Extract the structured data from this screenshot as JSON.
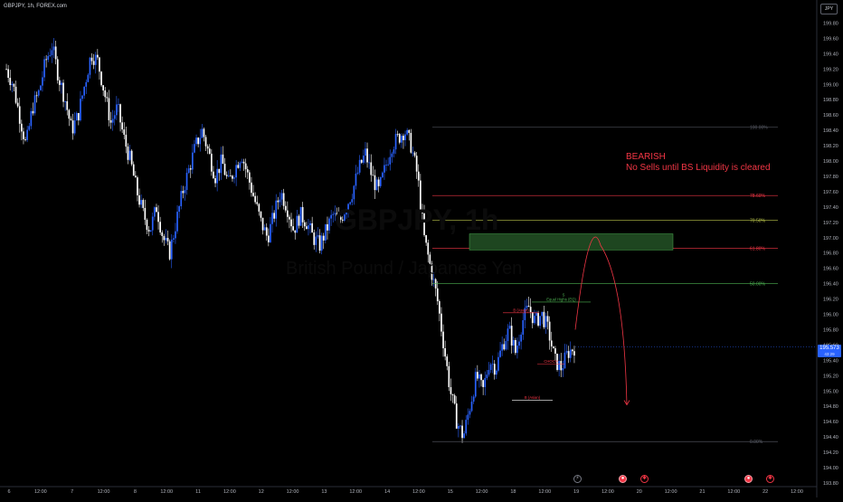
{
  "header": {
    "symbol": "GBPJPY, 1h, FOREX.com"
  },
  "currency": "JPY",
  "watermark": {
    "ticker": "GBPJPY, 1h",
    "name": "British Pound / Japanese Yen"
  },
  "annotation": {
    "line1": "BEARISH",
    "line2": "No Sells until BS Liquidity is cleared"
  },
  "price_tag": {
    "value": "195.573",
    "countdown": "43:29"
  },
  "colors": {
    "bull": "#2962ff",
    "bear": "#ffffff",
    "annotation": "#f23645",
    "zone": "#1e4620",
    "fib_100": "#5d606b",
    "fib_786": "#f23645",
    "fib_705": "#b8c34a",
    "fib_618": "#f23645",
    "fib_50": "#4caf50",
    "fib_0": "#5d606b"
  },
  "events": [
    {
      "name": "lightning",
      "glyph": "⚡"
    },
    {
      "name": "flag-1",
      "glyph": "●"
    },
    {
      "name": "flag-2",
      "glyph": "✱"
    },
    {
      "name": "flag-3",
      "glyph": "●"
    },
    {
      "name": "flag-4",
      "glyph": "✱"
    }
  ],
  "chart_data": {
    "type": "candlestick",
    "title": "GBPJPY, 1h, FOREX.com",
    "ylim": [
      193.95,
      200.0
    ],
    "y_ticks": [
      "199.80",
      "199.60",
      "199.40",
      "199.20",
      "199.00",
      "198.80",
      "198.60",
      "198.40",
      "198.20",
      "198.00",
      "197.80",
      "197.60",
      "197.40",
      "197.20",
      "197.00",
      "196.80",
      "196.60",
      "196.40",
      "196.20",
      "196.00",
      "195.80",
      "195.60",
      "195.40",
      "195.20",
      "195.00",
      "194.80",
      "194.60",
      "194.40",
      "194.20",
      "194.00",
      "193.80"
    ],
    "x_ticks": [
      "6",
      "12:00",
      "7",
      "12:00",
      "8",
      "12:00",
      "11",
      "12:00",
      "12",
      "12:00",
      "13",
      "12:00",
      "14",
      "12:00",
      "15",
      "12:00",
      "18",
      "12:00",
      "19",
      "12:00",
      "20",
      "12:00",
      "21",
      "12:00",
      "22",
      "12:00"
    ],
    "fib_levels": [
      {
        "label": "100.00%",
        "price": 198.44
      },
      {
        "label": "78.60%",
        "price": 197.55
      },
      {
        "label": "70.50%",
        "price": 197.23
      },
      {
        "label": "61.80%",
        "price": 196.86
      },
      {
        "label": "50.00%",
        "price": 196.4
      },
      {
        "label": "0.00%",
        "price": 194.34
      }
    ],
    "supply_zone": {
      "from": 196.84,
      "to": 197.05
    },
    "markers": [
      {
        "text": "B (Asian)",
        "price": 196.02
      },
      {
        "text": "Equal Highs (EQ)",
        "price": 196.16
      },
      {
        "text": "S",
        "price": 196.22
      },
      {
        "text": "CHOCH",
        "price": 195.35
      },
      {
        "text": "B (Asian)",
        "price": 194.88
      }
    ],
    "projection": {
      "from_price": 195.8,
      "peak_price": 196.9,
      "to_price": 194.82
    },
    "last_price": 195.573,
    "ohlc_path": [
      199.2,
      199.0,
      198.6,
      198.2,
      198.7,
      198.9,
      199.3,
      199.5,
      199.1,
      198.8,
      198.4,
      198.6,
      199.0,
      199.4,
      199.3,
      198.9,
      198.5,
      198.7,
      198.3,
      198.0,
      197.6,
      197.3,
      197.1,
      197.4,
      197.0,
      196.8,
      197.2,
      197.6,
      197.9,
      198.2,
      198.4,
      198.1,
      197.8,
      198.0,
      197.7,
      197.9,
      198.1,
      197.8,
      197.5,
      197.2,
      197.0,
      197.3,
      197.6,
      197.4,
      197.1,
      197.3,
      197.2,
      197.0,
      196.9,
      197.1,
      197.3,
      197.2,
      197.4,
      197.6,
      197.9,
      198.1,
      197.8,
      197.6,
      197.9,
      198.2,
      198.3,
      198.4,
      198.2,
      197.8,
      197.0,
      196.6,
      196.2,
      195.6,
      195.0,
      194.6,
      194.4,
      194.8,
      195.2,
      195.0,
      195.4,
      195.3,
      195.6,
      195.8,
      195.5,
      195.9,
      196.1,
      195.9,
      196.0,
      195.8,
      195.4,
      195.3,
      195.5,
      195.57
    ]
  }
}
